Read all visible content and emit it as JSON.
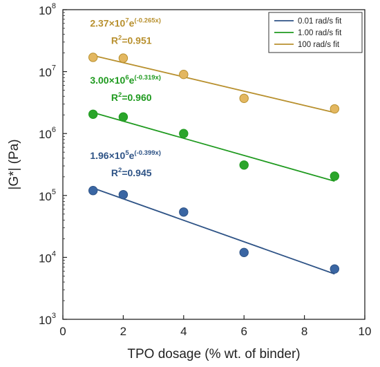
{
  "chart_data": {
    "type": "scatter",
    "title": "",
    "xlabel": "TPO dosage (% wt. of binder)",
    "ylabel": "|G*| (Pa)",
    "xlim": [
      0,
      10
    ],
    "ylim": [
      1000,
      100000000
    ],
    "yscale": "log",
    "xticks": [
      0,
      2,
      4,
      6,
      8,
      10
    ],
    "yticks": [
      {
        "value": 1000,
        "base": "10",
        "exp": "3"
      },
      {
        "value": 10000,
        "base": "10",
        "exp": "4"
      },
      {
        "value": 100000,
        "base": "10",
        "exp": "5"
      },
      {
        "value": 1000000,
        "base": "10",
        "exp": "6"
      },
      {
        "value": 10000000,
        "base": "10",
        "exp": "7"
      },
      {
        "value": 100000000,
        "base": "10",
        "exp": "8"
      }
    ],
    "grid": false,
    "legend_position": "top-right",
    "series": [
      {
        "name": "0.01 rad/s fit",
        "color": "#2e5386",
        "marker_fill": "#3a66a3",
        "x": [
          1,
          2,
          4,
          6,
          9
        ],
        "y": [
          120000,
          103000,
          54000,
          12000,
          6500
        ],
        "fit": {
          "a": 196000,
          "b": -0.399,
          "x_range": [
            1,
            9
          ]
        },
        "annotation": {
          "coef": "1.96×10",
          "coef_exp": "5",
          "e": "e",
          "exponent": "(-0.399x)",
          "r2_prefix": "R",
          "r2_exp": "2",
          "r2_value": "=0.945"
        }
      },
      {
        "name": "1.00 rad/s fit",
        "color": "#1f9a1f",
        "marker_fill": "#2aa52a",
        "x": [
          1,
          2,
          4,
          6,
          9
        ],
        "y": [
          2050000,
          1850000,
          1000000,
          310000,
          205000
        ],
        "fit": {
          "a": 3000000,
          "b": -0.319,
          "x_range": [
            1,
            9
          ]
        },
        "annotation": {
          "coef": "3.00×10",
          "coef_exp": "6",
          "e": "e",
          "exponent": "(-0.319x)",
          "r2_prefix": "R",
          "r2_exp": "2",
          "r2_value": "=0.960"
        }
      },
      {
        "name": "100 rad/s fit",
        "color": "#b8902e",
        "marker_fill": "#e3b760",
        "x": [
          1,
          2,
          4,
          6,
          9
        ],
        "y": [
          17000000,
          16500000,
          9000000,
          3700000,
          2500000
        ],
        "fit": {
          "a": 23700000,
          "b": -0.265,
          "x_range": [
            1,
            9
          ]
        },
        "annotation": {
          "coef": "2.37×10",
          "coef_exp": "7",
          "e": "e",
          "exponent": "(-0.265x)",
          "r2_prefix": "R",
          "r2_exp": "2",
          "r2_value": "=0.951"
        }
      }
    ]
  }
}
